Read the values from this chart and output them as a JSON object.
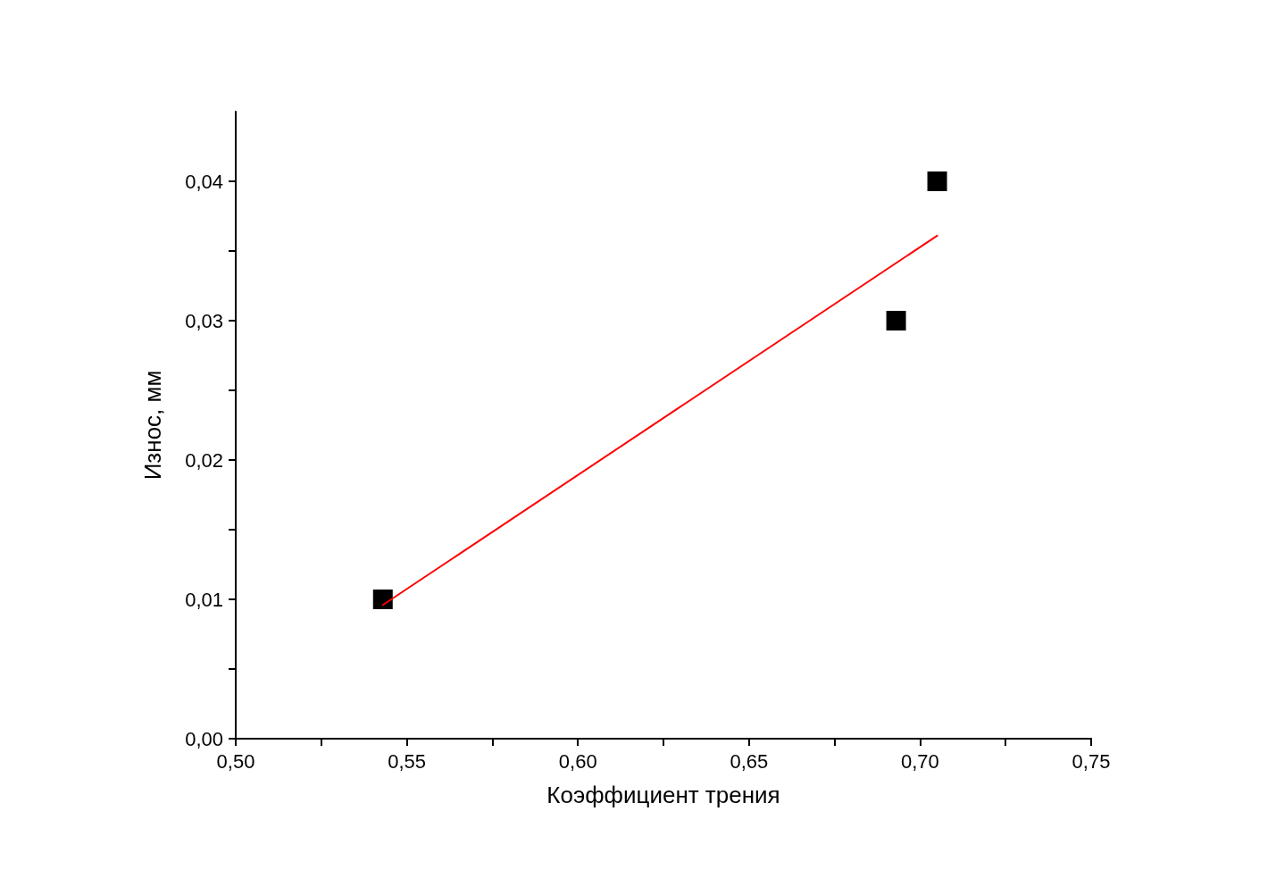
{
  "chart_data": {
    "type": "scatter",
    "xlabel": "Коэффициент трения",
    "ylabel": "Износ, мм",
    "marker": "square",
    "grid": false,
    "xlim": [
      0.5,
      0.75
    ],
    "xticks": [
      {
        "value": 0.5,
        "label": "0,50"
      },
      {
        "value": 0.525,
        "label": null
      },
      {
        "value": 0.55,
        "label": "0,55"
      },
      {
        "value": 0.575,
        "label": null
      },
      {
        "value": 0.6,
        "label": "0,60"
      },
      {
        "value": 0.625,
        "label": null
      },
      {
        "value": 0.65,
        "label": "0,65"
      },
      {
        "value": 0.675,
        "label": null
      },
      {
        "value": 0.7,
        "label": "0,70"
      },
      {
        "value": 0.725,
        "label": null
      },
      {
        "value": 0.75,
        "label": "0,75"
      }
    ],
    "ylim": [
      0,
      0.045
    ],
    "yticks": [
      {
        "value": 0,
        "label": "0,00"
      },
      {
        "value": 0.005,
        "label": null
      },
      {
        "value": 0.01,
        "label": "0,01"
      },
      {
        "value": 0.015,
        "label": null
      },
      {
        "value": 0.02,
        "label": "0,02"
      },
      {
        "value": 0.025,
        "label": null
      },
      {
        "value": 0.03,
        "label": "0,03"
      },
      {
        "value": 0.035,
        "label": null
      },
      {
        "value": 0.04,
        "label": "0,04"
      }
    ],
    "series": [
      {
        "color": "#000000",
        "x": [
          0.543,
          0.693,
          0.705
        ],
        "values": [
          0.01,
          0.03,
          0.04
        ]
      },
      {
        "type": "line",
        "color": "#ff0000",
        "marker": "none",
        "line_style": "solid",
        "x": [
          0.543,
          0.705
        ],
        "values": [
          0.0096,
          0.0361
        ]
      }
    ]
  }
}
